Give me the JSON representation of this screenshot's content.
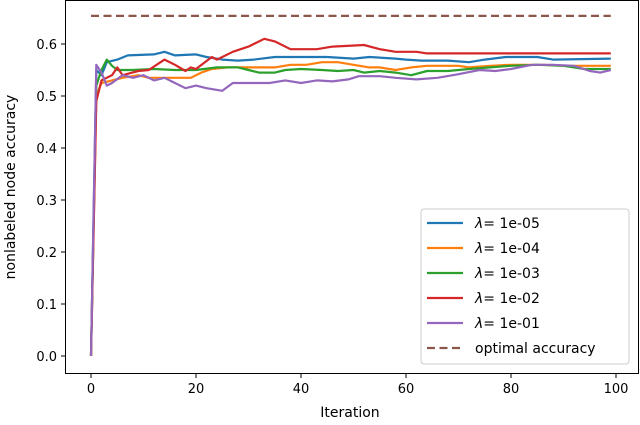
{
  "chart_data": {
    "type": "line",
    "title": "",
    "xlabel": "Iteration",
    "ylabel": "nonlabeled node accuracy",
    "xlim": [
      -5,
      104
    ],
    "ylim": [
      -0.03,
      0.69
    ],
    "xticks": [
      0,
      20,
      40,
      60,
      80,
      100
    ],
    "xtick_labels": [
      "0",
      "20",
      "40",
      "60",
      "80",
      "100"
    ],
    "yticks": [
      0.0,
      0.1,
      0.2,
      0.3,
      0.4,
      0.5,
      0.6
    ],
    "ytick_labels": [
      "0.0",
      "0.1",
      "0.2",
      "0.3",
      "0.4",
      "0.5",
      "0.6"
    ],
    "grid": false,
    "legend_position": "lower right",
    "series": [
      {
        "name": "λ= 1e-05",
        "lambda": "1e-05",
        "color": "#1f77b4",
        "style": "solid",
        "points": [
          [
            0,
            0.0
          ],
          [
            1,
            0.55
          ],
          [
            2,
            0.54
          ],
          [
            3,
            0.565
          ],
          [
            5,
            0.57
          ],
          [
            7,
            0.578
          ],
          [
            12,
            0.58
          ],
          [
            14,
            0.585
          ],
          [
            16,
            0.578
          ],
          [
            20,
            0.58
          ],
          [
            22,
            0.575
          ],
          [
            25,
            0.57
          ],
          [
            28,
            0.568
          ],
          [
            31,
            0.57
          ],
          [
            35,
            0.575
          ],
          [
            40,
            0.575
          ],
          [
            45,
            0.575
          ],
          [
            50,
            0.572
          ],
          [
            53,
            0.575
          ],
          [
            58,
            0.572
          ],
          [
            60,
            0.57
          ],
          [
            63,
            0.568
          ],
          [
            68,
            0.568
          ],
          [
            72,
            0.565
          ],
          [
            75,
            0.57
          ],
          [
            79,
            0.575
          ],
          [
            85,
            0.575
          ],
          [
            88,
            0.57
          ],
          [
            99,
            0.572
          ]
        ]
      },
      {
        "name": "λ= 1e-04",
        "lambda": "1e-04",
        "color": "#ff7f0e",
        "style": "solid",
        "points": [
          [
            0,
            0.0
          ],
          [
            1,
            0.5
          ],
          [
            2,
            0.525
          ],
          [
            4,
            0.53
          ],
          [
            6,
            0.535
          ],
          [
            9,
            0.54
          ],
          [
            11,
            0.535
          ],
          [
            13,
            0.535
          ],
          [
            15,
            0.535
          ],
          [
            19,
            0.535
          ],
          [
            21,
            0.545
          ],
          [
            23,
            0.552
          ],
          [
            26,
            0.555
          ],
          [
            30,
            0.555
          ],
          [
            35,
            0.555
          ],
          [
            38,
            0.56
          ],
          [
            41,
            0.56
          ],
          [
            44,
            0.565
          ],
          [
            47,
            0.565
          ],
          [
            50,
            0.56
          ],
          [
            53,
            0.555
          ],
          [
            55,
            0.555
          ],
          [
            58,
            0.55
          ],
          [
            61,
            0.555
          ],
          [
            64,
            0.558
          ],
          [
            70,
            0.558
          ],
          [
            72,
            0.555
          ],
          [
            76,
            0.558
          ],
          [
            80,
            0.56
          ],
          [
            86,
            0.56
          ],
          [
            90,
            0.558
          ],
          [
            99,
            0.558
          ]
        ]
      },
      {
        "name": "λ= 1e-03",
        "lambda": "1e-03",
        "color": "#2ca02c",
        "style": "solid",
        "points": [
          [
            0,
            0.0
          ],
          [
            1,
            0.52
          ],
          [
            2,
            0.55
          ],
          [
            3,
            0.57
          ],
          [
            4,
            0.558
          ],
          [
            5,
            0.55
          ],
          [
            8,
            0.55
          ],
          [
            12,
            0.552
          ],
          [
            16,
            0.55
          ],
          [
            20,
            0.55
          ],
          [
            24,
            0.555
          ],
          [
            28,
            0.555
          ],
          [
            30,
            0.55
          ],
          [
            32,
            0.545
          ],
          [
            35,
            0.545
          ],
          [
            37,
            0.55
          ],
          [
            40,
            0.552
          ],
          [
            44,
            0.55
          ],
          [
            47,
            0.548
          ],
          [
            50,
            0.55
          ],
          [
            52,
            0.545
          ],
          [
            55,
            0.548
          ],
          [
            58,
            0.545
          ],
          [
            61,
            0.54
          ],
          [
            64,
            0.548
          ],
          [
            68,
            0.548
          ],
          [
            72,
            0.552
          ],
          [
            76,
            0.555
          ],
          [
            80,
            0.558
          ],
          [
            85,
            0.56
          ],
          [
            90,
            0.558
          ],
          [
            94,
            0.552
          ],
          [
            99,
            0.552
          ]
        ]
      },
      {
        "name": "λ= 1e-02",
        "lambda": "1e-02",
        "color": "#d62728",
        "style": "solid",
        "points": [
          [
            0,
            0.0
          ],
          [
            1,
            0.49
          ],
          [
            2,
            0.53
          ],
          [
            4,
            0.54
          ],
          [
            5,
            0.555
          ],
          [
            6,
            0.54
          ],
          [
            9,
            0.548
          ],
          [
            11,
            0.55
          ],
          [
            14,
            0.57
          ],
          [
            16,
            0.56
          ],
          [
            18,
            0.548
          ],
          [
            19,
            0.555
          ],
          [
            20,
            0.552
          ],
          [
            23,
            0.575
          ],
          [
            24,
            0.57
          ],
          [
            27,
            0.585
          ],
          [
            30,
            0.595
          ],
          [
            33,
            0.61
          ],
          [
            35,
            0.605
          ],
          [
            38,
            0.59
          ],
          [
            43,
            0.59
          ],
          [
            46,
            0.595
          ],
          [
            52,
            0.598
          ],
          [
            55,
            0.59
          ],
          [
            58,
            0.585
          ],
          [
            62,
            0.585
          ],
          [
            64,
            0.582
          ],
          [
            99,
            0.582
          ]
        ]
      },
      {
        "name": "λ= 1e-01",
        "lambda": "1e-01",
        "color": "#9467bd",
        "style": "solid",
        "points": [
          [
            0,
            0.0
          ],
          [
            1,
            0.56
          ],
          [
            2,
            0.545
          ],
          [
            3,
            0.52
          ],
          [
            4,
            0.525
          ],
          [
            6,
            0.54
          ],
          [
            8,
            0.535
          ],
          [
            10,
            0.54
          ],
          [
            12,
            0.53
          ],
          [
            14,
            0.535
          ],
          [
            16,
            0.525
          ],
          [
            18,
            0.515
          ],
          [
            20,
            0.52
          ],
          [
            22,
            0.515
          ],
          [
            25,
            0.51
          ],
          [
            27,
            0.525
          ],
          [
            30,
            0.525
          ],
          [
            34,
            0.525
          ],
          [
            37,
            0.53
          ],
          [
            40,
            0.525
          ],
          [
            43,
            0.53
          ],
          [
            46,
            0.528
          ],
          [
            49,
            0.532
          ],
          [
            51,
            0.538
          ],
          [
            55,
            0.538
          ],
          [
            58,
            0.535
          ],
          [
            62,
            0.532
          ],
          [
            66,
            0.535
          ],
          [
            70,
            0.542
          ],
          [
            74,
            0.55
          ],
          [
            77,
            0.548
          ],
          [
            80,
            0.552
          ],
          [
            84,
            0.56
          ],
          [
            88,
            0.56
          ],
          [
            92,
            0.558
          ],
          [
            95,
            0.548
          ],
          [
            97,
            0.545
          ],
          [
            99,
            0.55
          ]
        ]
      },
      {
        "name": "optimal accuracy",
        "color": "#8c564b",
        "style": "dashed",
        "points": [
          [
            0,
            0.654
          ],
          [
            99,
            0.654
          ]
        ]
      }
    ]
  }
}
